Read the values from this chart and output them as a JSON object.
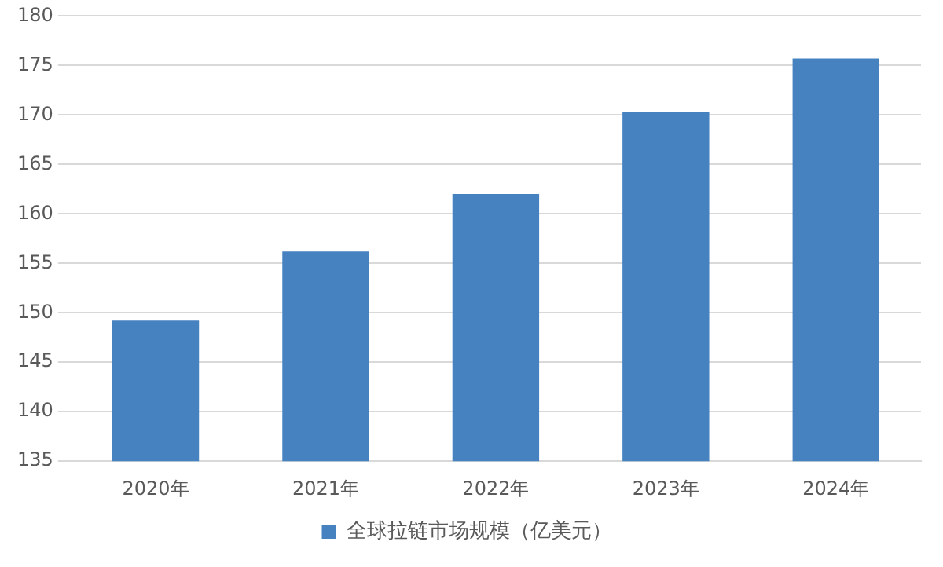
{
  "chart_data": {
    "type": "bar",
    "categories": [
      "2020年",
      "2021年",
      "2022年",
      "2023年",
      "2024年"
    ],
    "series": [
      {
        "name": "全球拉链市场规模（亿美元）",
        "color": "#4682c0",
        "values": [
          149.2,
          156.2,
          162.0,
          170.3,
          175.7
        ]
      }
    ],
    "ylim": [
      135,
      180
    ],
    "yticks": [
      135,
      140,
      145,
      150,
      155,
      160,
      165,
      170,
      175,
      180
    ],
    "grid": "y",
    "legend": "bottom"
  }
}
